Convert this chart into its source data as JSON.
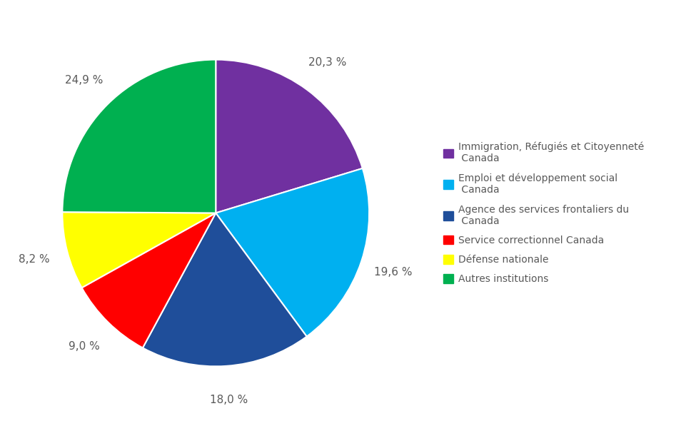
{
  "legend_labels": [
    "Immigration, Réfugiés et Citoyenneté\n Canada",
    "Emploi et développement social\n Canada",
    "Agence des services frontaliers du\n Canada",
    "Service correctionnel Canada",
    "Défense nationale",
    "Autres institutions"
  ],
  "values": [
    20.3,
    19.6,
    18.0,
    9.0,
    8.2,
    24.9
  ],
  "colors": [
    "#7030A0",
    "#00B0F0",
    "#1F4E9A",
    "#FF0000",
    "#FFFF00",
    "#00B050"
  ],
  "pct_labels": [
    "20,3 %",
    "19,6 %",
    "18,0 %",
    "9,0 %",
    "8,2 %",
    "24,9 %"
  ],
  "background_color": "#FFFFFF",
  "font_size": 11,
  "legend_font_size": 10,
  "text_color": "#595959"
}
